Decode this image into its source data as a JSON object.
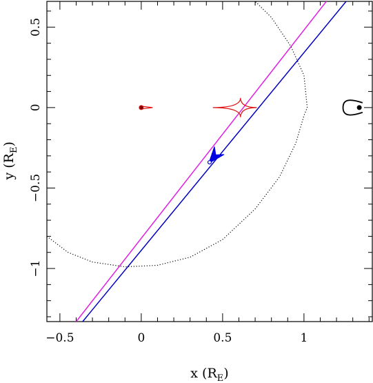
{
  "chart_data": {
    "type": "line",
    "title": "",
    "xlabel": {
      "text": "x (R",
      "subscript": "E",
      "suffix": ")"
    },
    "ylabel": {
      "text": "y (R",
      "subscript": "E",
      "suffix": ")"
    },
    "xlim": [
      -0.58,
      1.42
    ],
    "ylim": [
      -1.33,
      0.66
    ],
    "x_ticks": [
      {
        "value": -0.5,
        "label": "−0.5"
      },
      {
        "value": 0,
        "label": "0"
      },
      {
        "value": 0.5,
        "label": "0.5"
      },
      {
        "value": 1,
        "label": "1"
      }
    ],
    "y_ticks": [
      {
        "value": 0.5,
        "label": "0.5"
      },
      {
        "value": 0,
        "label": "0"
      },
      {
        "value": -0.5,
        "label": "−0.5"
      },
      {
        "value": -1,
        "label": "−1"
      }
    ],
    "x_minor_step": 0.1,
    "y_minor_step": 0.1,
    "grid": false,
    "colors": {
      "trajectory": "#0000c0",
      "magenta_line": "#e020e0",
      "caustic": "#e01010",
      "critical_curve": "#000000",
      "lens_points": "#000000",
      "source_marker": "#0000e0"
    },
    "series": [
      {
        "style": "solid",
        "color_key": "magenta_line",
        "x": [
          -0.4,
          1.3
        ],
        "y": [
          -1.33,
          0.87
        ]
      },
      {
        "style": "solid",
        "color_key": "trajectory",
        "x": [
          -0.36,
          1.3
        ],
        "y": [
          -1.33,
          0.71
        ]
      },
      {
        "style": "dotted",
        "color_key": "critical_curve",
        "x": [
          -0.58,
          -0.45,
          -0.3,
          -0.1,
          0.1,
          0.3,
          0.5,
          0.7,
          0.85,
          0.95,
          1.0,
          1.02,
          1.0,
          0.92,
          0.8,
          0.7
        ],
        "y": [
          -0.8,
          -0.9,
          -0.96,
          -0.99,
          -0.98,
          -0.93,
          -0.82,
          -0.63,
          -0.43,
          -0.22,
          -0.05,
          0.0,
          0.2,
          0.38,
          0.56,
          0.66
        ]
      },
      {
        "style": "solid",
        "color_key": "caustic",
        "kind": "central-caustic",
        "x": [
          0.0,
          0.07,
          0.0
        ],
        "y": [
          0.008,
          0.0,
          -0.008
        ]
      },
      {
        "style": "solid",
        "color_key": "caustic",
        "kind": "planetary-caustic",
        "center": [
          0.61,
          0.0
        ],
        "cusps_x": [
          0.44,
          0.61,
          0.71,
          0.61
        ],
        "cusps_y": [
          0.0,
          0.06,
          0.0,
          -0.06
        ]
      },
      {
        "style": "solid",
        "color_key": "critical_curve",
        "kind": "planet-critical-curve",
        "x": [
          1.36,
          1.28,
          1.24,
          1.28,
          1.36
        ],
        "y": [
          0.03,
          0.04,
          0.0,
          -0.04,
          -0.03
        ]
      }
    ],
    "points": [
      {
        "x": 0.0,
        "y": 0.0,
        "color_key": "caustic"
      },
      {
        "x": 1.34,
        "y": 0.0,
        "color_key": "lens_points"
      },
      {
        "x": 0.42,
        "y": -0.34,
        "color_key": "source_marker",
        "marker": "open-circle-with-arrow"
      }
    ]
  }
}
